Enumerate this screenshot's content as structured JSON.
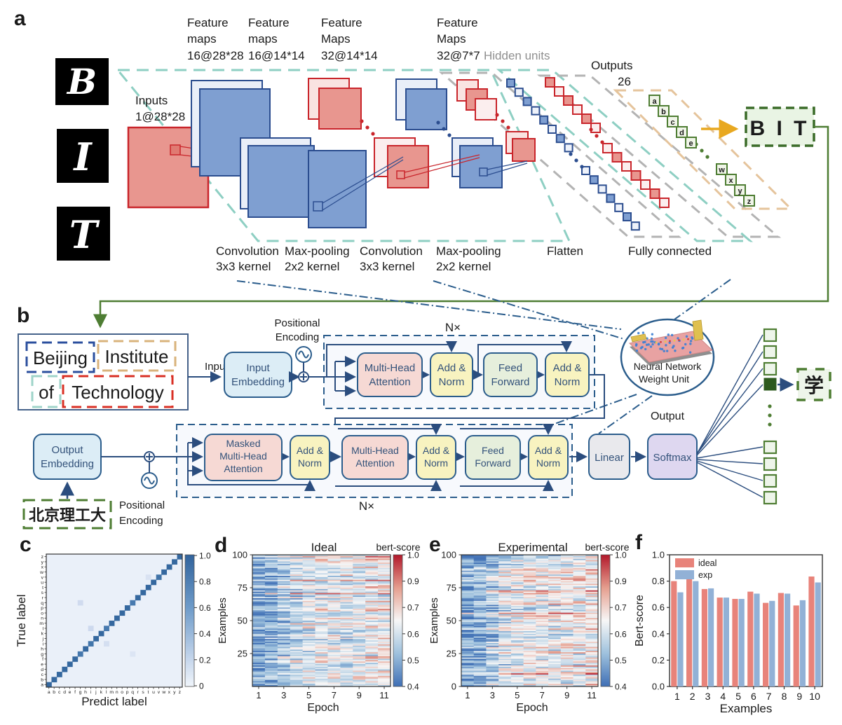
{
  "colors": {
    "accent_blue": "#2b5d8c",
    "arrow_blue": "#2b4d7e",
    "green_accent": "#4e7d33",
    "teal_dash": "#8ecfc3",
    "tan_dash": "#e5c49c",
    "gray_dash": "#b3b3b3",
    "red_map": "#e8968f",
    "red_border": "#c9252b",
    "blue_map": "#7f9fd1",
    "blue_border": "#2b4d8f",
    "yellow_arrow": "#e8a820",
    "box_pink": "#f6d9d4",
    "box_yellow": "#f8f3c0",
    "box_green": "#e6efdc",
    "box_blue": "#dcedf6",
    "box_gray": "#e9e9ed",
    "box_purple": "#ded7f0",
    "ideal_bar": "#e8837a",
    "exp_bar": "#92b1d6",
    "heat_red": "#b2182b",
    "heat_blue": "#3f6fb5",
    "matrix_blue": "#31639c"
  },
  "panel_a": {
    "label": "a",
    "input_tiles": [
      "B",
      "I",
      "T"
    ],
    "inputs_label": [
      "Inputs",
      "1@28*28"
    ],
    "feature_labels": [
      {
        "lines": [
          "Feature",
          "maps",
          "16@28*28"
        ]
      },
      {
        "lines": [
          "Feature",
          "maps",
          "16@14*14"
        ]
      },
      {
        "lines": [
          "Feature",
          "Maps",
          "32@14*14"
        ]
      },
      {
        "lines": [
          "Feature",
          "Maps",
          "32@7*7"
        ]
      }
    ],
    "hidden_units_label": "Hidden units",
    "outputs_label": [
      "Outputs",
      "26"
    ],
    "output_letters_top": [
      "a",
      "b",
      "c",
      "d",
      "e"
    ],
    "output_letters_bottom": [
      "w",
      "x",
      "y",
      "z"
    ],
    "bit_label": "B I T",
    "stage_labels": [
      {
        "lines": [
          "Convolution",
          "3x3 kernel"
        ]
      },
      {
        "lines": [
          "Max-pooling",
          "2x2 kernel"
        ]
      },
      {
        "lines": [
          "Convolution",
          "3x3 kernel"
        ]
      },
      {
        "lines": [
          "Max-pooling",
          "2x2 kernel"
        ]
      },
      {
        "lines": [
          "Flatten",
          ""
        ]
      },
      {
        "lines": [
          "Fully connected",
          ""
        ]
      }
    ]
  },
  "panel_b": {
    "label": "b",
    "sentence_words": [
      {
        "text": "Beijing",
        "border": "#2b4f9e"
      },
      {
        "text": "Institute",
        "border": "#d9b37c"
      },
      {
        "text": "of",
        "border": "#9fd4c9"
      },
      {
        "text": "Technology",
        "border": "#d93025"
      }
    ],
    "input_label": "Input",
    "positional_encoding": [
      "Positional",
      "Encoding"
    ],
    "n_times": "N×",
    "output_label": "Output",
    "weight_unit": [
      "Neural Network",
      "Weight Unit"
    ],
    "chinese_input": "北京理工大",
    "chinese_output": "学",
    "blocks": {
      "input_embedding": [
        "Input",
        "Embedding"
      ],
      "output_embedding": [
        "Output",
        "Embedding"
      ],
      "mha": [
        "Multi-Head",
        "Attention"
      ],
      "masked_mha": [
        "Masked",
        "Multi-Head",
        "Attention"
      ],
      "addnorm": [
        "Add &",
        "Norm"
      ],
      "ff": [
        "Feed",
        "Forward"
      ],
      "linear": "Linear",
      "softmax": "Softmax"
    }
  },
  "panel_labels": {
    "c": "c",
    "d": "d",
    "e": "e",
    "f": "f"
  },
  "chart_data": [
    {
      "id": "c",
      "type": "heatmap",
      "subtype": "confusion_matrix",
      "xlabel": "Predict label",
      "ylabel": "True label",
      "classes": [
        "a",
        "b",
        "c",
        "d",
        "e",
        "f",
        "g",
        "h",
        "i",
        "j",
        "k",
        "l",
        "m",
        "n",
        "o",
        "p",
        "q",
        "r",
        "s",
        "t",
        "u",
        "v",
        "w",
        "x",
        "y",
        "z"
      ],
      "diagonal_value": 1.0,
      "reduced_diagonal": [
        {
          "class": "g",
          "value": 0.82
        },
        {
          "class": "i",
          "value": 0.85
        },
        {
          "class": "l",
          "value": 0.8
        },
        {
          "class": "q",
          "value": 0.8
        },
        {
          "class": "v",
          "value": 0.88
        }
      ],
      "off_diagonal": [
        {
          "true": "q",
          "pred": "g",
          "value": 0.18
        },
        {
          "true": "l",
          "pred": "i",
          "value": 0.2
        },
        {
          "true": "i",
          "pred": "l",
          "value": 0.15
        },
        {
          "true": "g",
          "pred": "q",
          "value": 0.1
        },
        {
          "true": "v",
          "pred": "t",
          "value": 0.12
        }
      ],
      "vmin": 0,
      "vmax": 1,
      "colorbar_ticks": [
        "1.0",
        "0.8",
        "0.6",
        "0.4",
        "0.2",
        "0"
      ]
    },
    {
      "id": "d",
      "type": "heatmap",
      "title": "Ideal",
      "colorbar_label": "bert-score",
      "xlabel": "Epoch",
      "ylabel": "Examples",
      "x_ticks": [
        1,
        3,
        5,
        7,
        9,
        11
      ],
      "y_ticks": [
        100,
        75,
        50,
        25
      ],
      "n_rows": 100,
      "n_cols": 11,
      "vmin": 0.4,
      "vmax": 1.0,
      "colorbar_ticks": [
        "1.0",
        "0.9",
        "0.7",
        "0.6",
        "0.5",
        "0.4"
      ],
      "epoch_means": [
        0.5,
        0.53,
        0.58,
        0.63,
        0.66,
        0.67,
        0.67,
        0.65,
        0.67,
        0.69,
        0.7
      ],
      "row_variation": 0.09,
      "noise": 0.1,
      "seed": 20240229
    },
    {
      "id": "e",
      "type": "heatmap",
      "title": "Experimental",
      "colorbar_label": "bert-score",
      "xlabel": "Epoch",
      "ylabel": "Examples",
      "x_ticks": [
        1,
        3,
        5,
        7,
        9,
        11
      ],
      "y_ticks": [
        100,
        75,
        50,
        25,
        0
      ],
      "n_rows": 100,
      "n_cols": 11,
      "vmin": 0.4,
      "vmax": 1.0,
      "colorbar_ticks": [
        "1.0",
        "0.9",
        "0.7",
        "0.6",
        "0.5",
        "0.4"
      ],
      "epoch_means": [
        0.5,
        0.54,
        0.58,
        0.64,
        0.67,
        0.68,
        0.68,
        0.66,
        0.68,
        0.7,
        0.71
      ],
      "row_variation": 0.09,
      "noise": 0.12,
      "seed": 987654
    },
    {
      "id": "f",
      "type": "bar",
      "xlabel": "Examples",
      "ylabel": "Bert-score",
      "categories": [
        "1",
        "2",
        "3",
        "4",
        "5",
        "6",
        "7",
        "8",
        "9",
        "10"
      ],
      "series": [
        {
          "name": "ideal",
          "color": "#e8837a",
          "values": [
            0.8,
            0.82,
            0.74,
            0.675,
            0.665,
            0.72,
            0.635,
            0.71,
            0.615,
            0.835
          ]
        },
        {
          "name": "exp",
          "color": "#92b1d6",
          "values": [
            0.715,
            0.8,
            0.745,
            0.675,
            0.665,
            0.705,
            0.65,
            0.705,
            0.655,
            0.79
          ]
        }
      ],
      "ylim": [
        0.0,
        1.0
      ],
      "y_ticks": [
        "0.0",
        "0.2",
        "0.4",
        "0.6",
        "0.8",
        "1.0"
      ],
      "legend_position": "upper-left"
    }
  ]
}
